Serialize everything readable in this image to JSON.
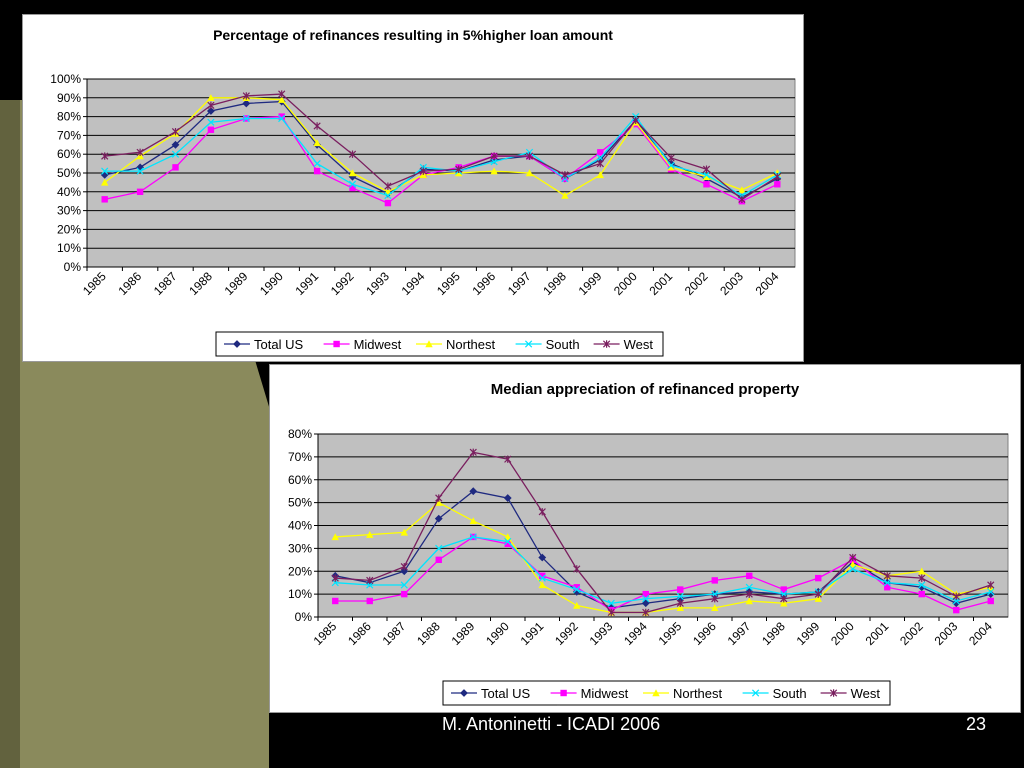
{
  "footer": {
    "credit": "M. Antoninetti - ICADI 2006",
    "page": "23"
  },
  "colors": {
    "Total US": "#1f2a80",
    "Midwest": "#ff00ff",
    "Northest": "#ffff00",
    "South": "#00e5ff",
    "West": "#7a1f5f",
    "plot_bg": "#c0c0c0"
  },
  "chart_data": [
    {
      "type": "line",
      "title": "Percentage of refinances resulting in 5%higher loan amount",
      "xlabel": "",
      "ylabel": "",
      "categories": [
        "1985",
        "1986",
        "1987",
        "1988",
        "1989",
        "1990",
        "1991",
        "1992",
        "1993",
        "1994",
        "1995",
        "1996",
        "1997",
        "1998",
        "1999",
        "2000",
        "2001",
        "2002",
        "2003",
        "2004"
      ],
      "ylim": [
        0,
        100
      ],
      "yticks": [
        "0%",
        "10%",
        "20%",
        "30%",
        "40%",
        "50%",
        "60%",
        "70%",
        "80%",
        "90%",
        "100%"
      ],
      "legend_position": "bottom",
      "grid": true,
      "series": [
        {
          "name": "Total US",
          "marker": "diamond",
          "values": [
            49,
            53,
            65,
            83,
            87,
            88,
            65,
            48,
            39,
            52,
            51,
            57,
            59,
            47,
            57,
            78,
            55,
            47,
            37,
            47
          ]
        },
        {
          "name": "Midwest",
          "marker": "square",
          "values": [
            36,
            40,
            53,
            73,
            79,
            80,
            51,
            42,
            34,
            49,
            53,
            59,
            59,
            47,
            61,
            76,
            52,
            44,
            35,
            44
          ]
        },
        {
          "name": "Northest",
          "marker": "triangle",
          "values": [
            45,
            59,
            71,
            90,
            90,
            89,
            66,
            50,
            40,
            49,
            50,
            51,
            50,
            38,
            49,
            77,
            53,
            48,
            41,
            50
          ]
        },
        {
          "name": "South",
          "marker": "x",
          "values": [
            51,
            51,
            60,
            77,
            79,
            79,
            55,
            44,
            38,
            53,
            51,
            56,
            61,
            47,
            58,
            80,
            54,
            49,
            38,
            49
          ]
        },
        {
          "name": "West",
          "marker": "star",
          "values": [
            59,
            61,
            72,
            86,
            91,
            92,
            75,
            60,
            43,
            51,
            52,
            59,
            59,
            49,
            55,
            78,
            58,
            52,
            36,
            48
          ]
        }
      ]
    },
    {
      "type": "line",
      "title": "Median appreciation of refinanced property",
      "xlabel": "",
      "ylabel": "",
      "categories": [
        "1985",
        "1986",
        "1987",
        "1988",
        "1989",
        "1990",
        "1991",
        "1992",
        "1993",
        "1994",
        "1995",
        "1996",
        "1997",
        "1998",
        "1999",
        "2000",
        "2001",
        "2002",
        "2003",
        "2004"
      ],
      "ylim": [
        0,
        80
      ],
      "yticks": [
        "0%",
        "10%",
        "20%",
        "30%",
        "40%",
        "50%",
        "60%",
        "70%",
        "80%"
      ],
      "legend_position": "bottom",
      "grid": true,
      "series": [
        {
          "name": "Total US",
          "marker": "diamond",
          "values": [
            18,
            15,
            20,
            43,
            55,
            52,
            26,
            11,
            4,
            6,
            8,
            10,
            11,
            10,
            11,
            24,
            15,
            13,
            6,
            10
          ]
        },
        {
          "name": "Midwest",
          "marker": "square",
          "values": [
            7,
            7,
            10,
            25,
            35,
            32,
            18,
            13,
            3,
            10,
            12,
            16,
            18,
            12,
            17,
            25,
            13,
            10,
            3,
            7
          ]
        },
        {
          "name": "Northest",
          "marker": "triangle",
          "values": [
            35,
            36,
            37,
            50,
            42,
            35,
            14,
            5,
            2,
            2,
            4,
            4,
            7,
            6,
            8,
            23,
            18,
            20,
            10,
            13
          ]
        },
        {
          "name": "South",
          "marker": "x",
          "values": [
            15,
            14,
            14,
            30,
            35,
            33,
            17,
            12,
            6,
            8,
            9,
            10,
            13,
            10,
            11,
            21,
            15,
            14,
            7,
            11
          ]
        },
        {
          "name": "West",
          "marker": "star",
          "values": [
            17,
            16,
            22,
            52,
            72,
            69,
            46,
            21,
            2,
            2,
            6,
            8,
            10,
            8,
            10,
            26,
            18,
            17,
            9,
            14
          ]
        }
      ]
    }
  ]
}
